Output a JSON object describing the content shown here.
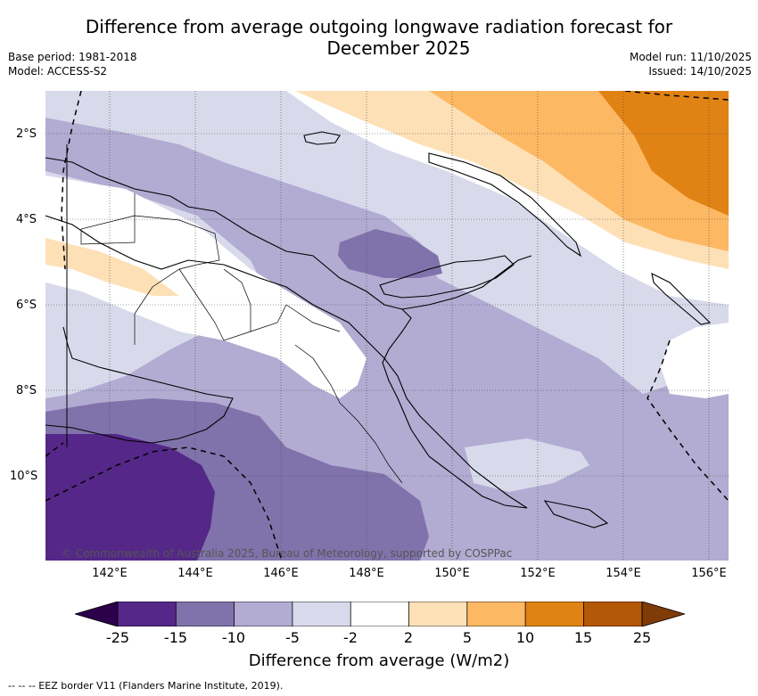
{
  "title": {
    "line1": "Difference from average outgoing longwave radiation forecast for",
    "line2": "December 2025"
  },
  "meta": {
    "base_period": "Base period: 1981-2018",
    "model": "Model: ACCESS-S2",
    "model_run": "Model run: 11/10/2025",
    "issued": "Issued: 14/10/2025"
  },
  "axes": {
    "latitude_labels": [
      "2°S",
      "4°S",
      "6°S",
      "8°S",
      "10°S"
    ],
    "longitude_labels": [
      "142°E",
      "144°E",
      "146°E",
      "148°E",
      "150°E",
      "152°E",
      "154°E",
      "156°E"
    ]
  },
  "copyright": "© Commonwealth of Australia 2025, Bureau of Meteorology, supported by COSPPac",
  "colorbar": {
    "title": "Difference from average (W/m2)",
    "tick_labels": [
      "-25",
      "-15",
      "-10",
      "-5",
      "-2",
      "2",
      "5",
      "10",
      "15",
      "25"
    ],
    "colors": {
      "below_-25": "#2d004b",
      "-25_to_-15": "#542788",
      "-15_to_-10": "#8073ac",
      "-10_to_-5": "#b2abd2",
      "-5_to_-2": "#d8daeb",
      "-2_to_2": "#ffffff",
      "2_to_5": "#fee0b6",
      "5_to_10": "#fdb863",
      "10_to_15": "#e08214",
      "15_to_25": "#b35806",
      "above_25": "#7f3b08"
    }
  },
  "footnote": "-- -- -- EEZ border V11 (Flanders Marine Institute, 2019)."
}
